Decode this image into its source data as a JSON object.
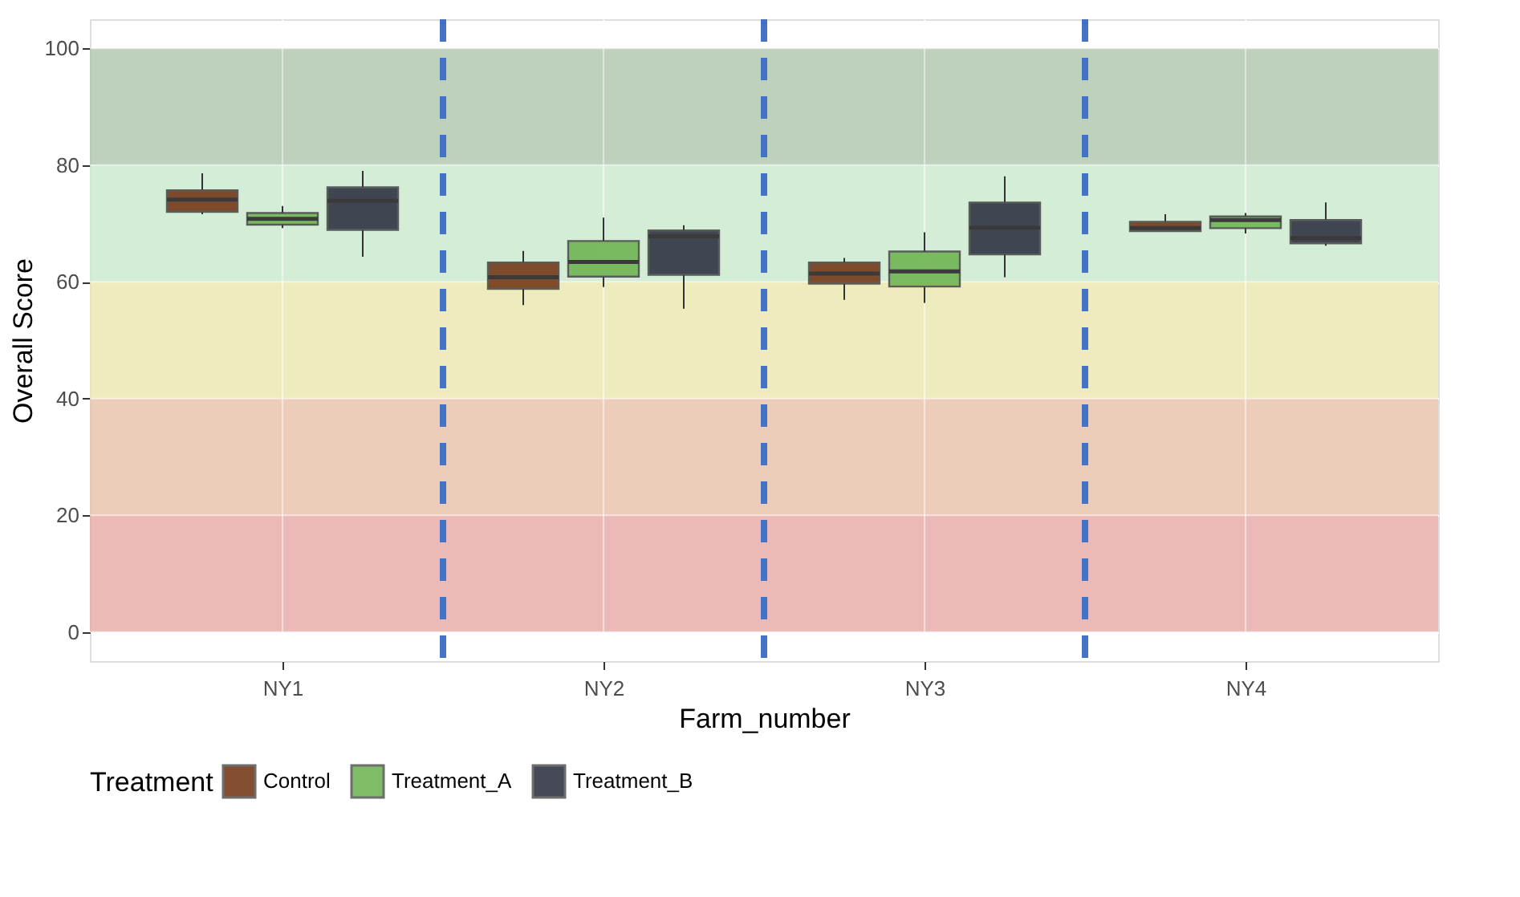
{
  "chart_data": {
    "type": "box",
    "xlabel": "Farm_number",
    "ylabel": "Overall Score",
    "legend_title": "Treatment",
    "categories": [
      "NY1",
      "NY2",
      "NY3",
      "NY4"
    ],
    "ylim": [
      -5,
      105
    ],
    "yticks": [
      0,
      20,
      40,
      60,
      80,
      100
    ],
    "grid": true,
    "legend": "bottom",
    "series": [
      {
        "name": "Control",
        "color": "#6e2f0f",
        "boxes": [
          {
            "low": 71.6,
            "q1": 72.0,
            "median": 74.1,
            "q3": 75.7,
            "high": 78.6
          },
          {
            "low": 56.0,
            "q1": 58.8,
            "median": 60.8,
            "q3": 63.3,
            "high": 65.3
          },
          {
            "low": 56.9,
            "q1": 59.7,
            "median": 61.4,
            "q3": 63.3,
            "high": 64.1
          },
          {
            "low": 68.7,
            "q1": 68.7,
            "median": 69.2,
            "q3": 70.3,
            "high": 71.6
          }
        ]
      },
      {
        "name": "Treatment_A",
        "color": "#6ab04c",
        "boxes": [
          {
            "low": 69.2,
            "q1": 69.8,
            "median": 70.8,
            "q3": 71.8,
            "high": 73.0
          },
          {
            "low": 59.1,
            "q1": 60.9,
            "median": 63.4,
            "q3": 67.0,
            "high": 71.0
          },
          {
            "low": 56.4,
            "q1": 59.2,
            "median": 61.8,
            "q3": 65.2,
            "high": 68.5
          },
          {
            "low": 68.3,
            "q1": 69.2,
            "median": 70.6,
            "q3": 71.2,
            "high": 71.8
          }
        ]
      },
      {
        "name": "Treatment_B",
        "color": "#262a3c",
        "boxes": [
          {
            "low": 64.3,
            "q1": 68.9,
            "median": 73.9,
            "q3": 76.2,
            "high": 79.0
          },
          {
            "low": 55.4,
            "q1": 61.2,
            "median": 67.8,
            "q3": 68.8,
            "high": 69.7
          },
          {
            "low": 60.8,
            "q1": 64.7,
            "median": 69.3,
            "q3": 73.6,
            "high": 78.1
          },
          {
            "low": 66.2,
            "q1": 66.6,
            "median": 67.5,
            "q3": 70.6,
            "high": 73.6
          }
        ]
      }
    ],
    "bands": [
      {
        "axis": "y",
        "from": 0,
        "to": 20,
        "color": "#e9adad"
      },
      {
        "axis": "y",
        "from": 20,
        "to": 40,
        "color": "#e9c4ad"
      },
      {
        "axis": "y",
        "from": 40,
        "to": 60,
        "color": "#ebe9b0"
      },
      {
        "axis": "y",
        "from": 60,
        "to": 80,
        "color": "#cdeacf"
      },
      {
        "axis": "y",
        "from": 80,
        "to": 100,
        "color": "#b2c9b2"
      }
    ]
  }
}
